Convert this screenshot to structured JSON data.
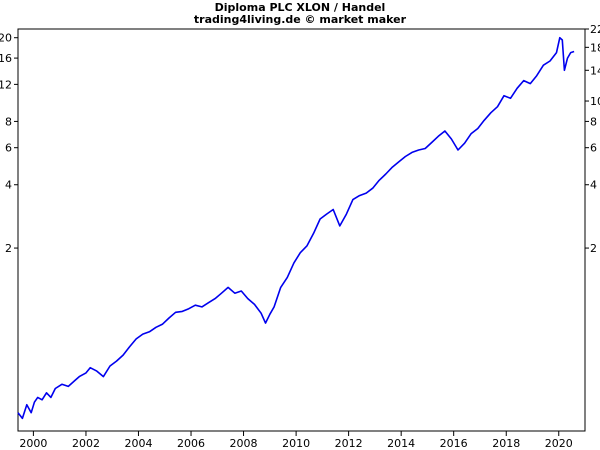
{
  "chart_data": {
    "type": "line",
    "title": "Diploma PLC XLON / Handel",
    "subtitle": "trading4living.de © market maker",
    "xlabel": "",
    "ylabel": "",
    "y_scale": "log",
    "xlim": [
      "1999-06-01",
      "2020-12-31"
    ],
    "ylim": [
      0.27,
      22
    ],
    "grid": false,
    "legend": "none",
    "line_color": "#0000ee",
    "x_ticks": [
      "2000",
      "2002",
      "2004",
      "2006",
      "2008",
      "2010",
      "2012",
      "2014",
      "2016",
      "2018",
      "2020"
    ],
    "y_ticks_left": [
      "20",
      "16",
      "12",
      "8",
      "6",
      "4",
      "2"
    ],
    "y_ticks_right": [
      "22",
      "18",
      "14",
      "10",
      "8",
      "6",
      "4",
      "2"
    ],
    "series": [
      {
        "name": "",
        "x": [
          "1999-06-01",
          "1999-08-01",
          "1999-10-01",
          "1999-12-01",
          "2000-01-15",
          "2000-03-01",
          "2000-05-01",
          "2000-07-01",
          "2000-09-01",
          "2000-11-01",
          "2001-02-01",
          "2001-05-01",
          "2001-08-01",
          "2001-10-01",
          "2002-01-01",
          "2002-03-01",
          "2002-06-01",
          "2002-09-01",
          "2002-12-01",
          "2003-03-01",
          "2003-06-01",
          "2003-09-01",
          "2003-12-01",
          "2004-03-01",
          "2004-06-01",
          "2004-09-01",
          "2004-12-01",
          "2005-03-01",
          "2005-06-01",
          "2005-09-01",
          "2005-12-01",
          "2006-03-01",
          "2006-06-01",
          "2006-09-01",
          "2006-12-01",
          "2007-03-01",
          "2007-06-01",
          "2007-09-01",
          "2007-12-01",
          "2008-03-01",
          "2008-06-01",
          "2008-09-01",
          "2008-11-01",
          "2009-01-01",
          "2009-03-01",
          "2009-06-01",
          "2009-09-01",
          "2009-12-01",
          "2010-03-01",
          "2010-06-01",
          "2010-09-01",
          "2010-12-01",
          "2011-03-01",
          "2011-06-01",
          "2011-09-01",
          "2011-12-01",
          "2012-03-01",
          "2012-06-01",
          "2012-09-01",
          "2012-12-01",
          "2013-03-01",
          "2013-06-01",
          "2013-09-01",
          "2013-12-01",
          "2014-03-01",
          "2014-06-01",
          "2014-09-01",
          "2014-12-01",
          "2015-03-01",
          "2015-06-01",
          "2015-09-01",
          "2015-12-01",
          "2016-03-01",
          "2016-06-01",
          "2016-09-01",
          "2016-12-01",
          "2017-03-01",
          "2017-06-01",
          "2017-09-01",
          "2017-12-01",
          "2018-03-01",
          "2018-06-01",
          "2018-09-01",
          "2018-12-01",
          "2019-03-01",
          "2019-06-01",
          "2019-09-01",
          "2019-12-01",
          "2020-01-15",
          "2020-02-20",
          "2020-03-20",
          "2020-05-01",
          "2020-06-15",
          "2020-08-01"
        ],
        "y": [
          0.33,
          0.31,
          0.36,
          0.33,
          0.37,
          0.39,
          0.38,
          0.41,
          0.39,
          0.43,
          0.45,
          0.44,
          0.47,
          0.49,
          0.51,
          0.54,
          0.52,
          0.49,
          0.55,
          0.58,
          0.62,
          0.68,
          0.74,
          0.78,
          0.8,
          0.84,
          0.87,
          0.93,
          0.99,
          1.0,
          1.03,
          1.07,
          1.05,
          1.1,
          1.15,
          1.22,
          1.3,
          1.22,
          1.25,
          1.15,
          1.08,
          0.98,
          0.88,
          0.97,
          1.05,
          1.3,
          1.45,
          1.7,
          1.9,
          2.05,
          2.35,
          2.75,
          2.9,
          3.05,
          2.55,
          2.9,
          3.4,
          3.55,
          3.65,
          3.85,
          4.2,
          4.5,
          4.85,
          5.15,
          5.45,
          5.7,
          5.85,
          5.95,
          6.35,
          6.8,
          7.2,
          6.6,
          5.85,
          6.3,
          7.0,
          7.4,
          8.1,
          8.8,
          9.4,
          10.6,
          10.3,
          11.5,
          12.5,
          12.1,
          13.2,
          14.8,
          15.5,
          17.0,
          20.0,
          19.5,
          14.0,
          16.0,
          17.0,
          17.2
        ]
      }
    ]
  }
}
